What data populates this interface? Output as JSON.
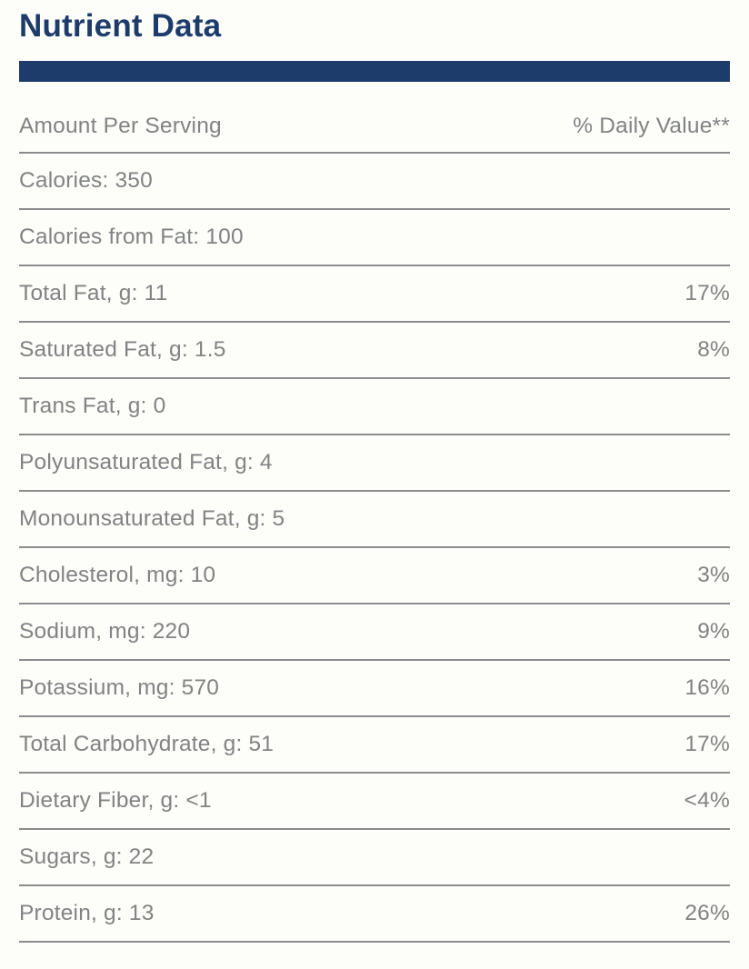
{
  "title": "Nutrient Data",
  "colors": {
    "navy": "#1d3c6b",
    "text_gray": "#818385",
    "line_gray": "#8b8c8e",
    "background": "#fdfdf9"
  },
  "table": {
    "header": {
      "left": "Amount Per Serving",
      "right": "% Daily Value**"
    },
    "rows": [
      {
        "label": "Calories: 350",
        "daily_value": ""
      },
      {
        "label": "Calories from Fat: 100",
        "daily_value": ""
      },
      {
        "label": "Total Fat, g: 11",
        "daily_value": "17%"
      },
      {
        "label": "Saturated Fat, g: 1.5",
        "daily_value": "8%"
      },
      {
        "label": "Trans Fat, g: 0",
        "daily_value": ""
      },
      {
        "label": "Polyunsaturated Fat, g: 4",
        "daily_value": ""
      },
      {
        "label": "Monounsaturated Fat, g: 5",
        "daily_value": ""
      },
      {
        "label": "Cholesterol, mg: 10",
        "daily_value": "3%"
      },
      {
        "label": "Sodium, mg: 220",
        "daily_value": "9%"
      },
      {
        "label": "Potassium, mg: 570",
        "daily_value": "16%"
      },
      {
        "label": "Total Carbohydrate, g: 51",
        "daily_value": "17%"
      },
      {
        "label": "Dietary Fiber, g: <1",
        "daily_value": "<4%"
      },
      {
        "label": "Sugars, g: 22",
        "daily_value": ""
      },
      {
        "label": "Protein, g: 13",
        "daily_value": "26%"
      }
    ]
  }
}
